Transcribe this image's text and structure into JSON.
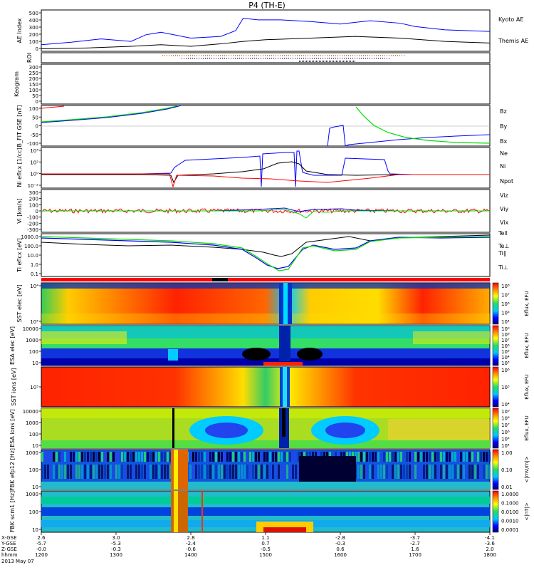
{
  "title": "P4 (TH-E)",
  "colors": {
    "blue": "#0000ff",
    "red": "#ff0000",
    "green": "#00dd00",
    "black": "#000000"
  },
  "chart_data": [
    {
      "type": "line",
      "panel": "ae",
      "ylabel": "AE Index",
      "yticks": [
        "500",
        "400",
        "300",
        "200",
        "100",
        "0"
      ],
      "ylim": [
        0,
        500
      ],
      "series": [
        {
          "name": "Kyoto AE",
          "color": "#0000ff",
          "x": [
            1200,
            1240,
            1280,
            1320,
            1340,
            1360,
            1400,
            1440,
            1460,
            1470,
            1490,
            1520,
            1560,
            1600,
            1640,
            1680,
            1700,
            1740,
            1800
          ],
          "y": [
            80,
            110,
            150,
            120,
            200,
            230,
            160,
            180,
            250,
            400,
            380,
            380,
            360,
            330,
            370,
            340,
            300,
            260,
            240
          ]
        },
        {
          "name": "Themis AE",
          "color": "#000000",
          "x": [
            1200,
            1260,
            1320,
            1360,
            1400,
            1440,
            1470,
            1500,
            1560,
            1620,
            1680,
            1740,
            1800
          ],
          "y": [
            30,
            40,
            60,
            80,
            60,
            90,
            120,
            140,
            160,
            180,
            160,
            120,
            100
          ]
        }
      ]
    },
    {
      "type": "scatter",
      "panel": "roi",
      "ylabel": "ROI"
    },
    {
      "type": "line",
      "panel": "keogram",
      "ylabel": "Keogram",
      "yticks": [
        "300",
        "250",
        "200",
        "150",
        "100",
        "50",
        "0"
      ],
      "ylim": [
        0,
        300
      ]
    },
    {
      "type": "line",
      "panel": "bfield",
      "ylabel": "B_FIT GSE [nT]",
      "yticks": [
        "100",
        "50",
        "0",
        "-50",
        "-100"
      ],
      "ylim": [
        -100,
        100
      ],
      "series": [
        {
          "name": "Bz",
          "color": "#ff0000"
        },
        {
          "name": "By",
          "color": "#00dd00"
        },
        {
          "name": "Bx",
          "color": "#0000ff"
        }
      ]
    },
    {
      "type": "line",
      "panel": "density",
      "ylabel": "Ni eflcx [1/cc]",
      "yticks": [
        "10⁴",
        "10²",
        "10⁰",
        "10⁻²"
      ],
      "series": [
        {
          "name": "Ne",
          "color": "#ff0000"
        },
        {
          "name": "Ni",
          "color": "#000000"
        },
        {
          "name": "Npot",
          "color": "#0000ff"
        }
      ]
    },
    {
      "type": "line",
      "panel": "velocity",
      "ylabel": "Vi [km/s]",
      "yticks": [
        "300",
        "200",
        "100",
        "0",
        "-100",
        "-200",
        "-300"
      ],
      "ylim": [
        -300,
        300
      ],
      "series": [
        {
          "name": "Viz",
          "color": "#ff0000"
        },
        {
          "name": "Viy",
          "color": "#00dd00"
        },
        {
          "name": "Vix",
          "color": "#0000ff"
        }
      ]
    },
    {
      "type": "line",
      "panel": "temperature",
      "ylabel": "Ti eflcx [eV]",
      "yticks": [
        "1000.0",
        "100.0",
        "10.0",
        "1.0",
        "0.1"
      ],
      "series": [
        {
          "name": "Tell",
          "color": "#000000"
        },
        {
          "name": "Te⊥",
          "color": "#ff0000"
        },
        {
          "name": "Ti∥",
          "color": "#00dd00"
        },
        {
          "name": "Ti⊥",
          "color": "#0000ff"
        }
      ]
    },
    {
      "type": "heatmap",
      "panel": "sst_e",
      "ylabel": "SST elec [eV]",
      "yticks": [
        "10⁴",
        "10⁵"
      ],
      "cbar_ticks": [
        "10⁸",
        "10⁷",
        "10⁶",
        "10⁵",
        "10⁴"
      ],
      "cbar_label": "Eflux, EFU"
    },
    {
      "type": "heatmap",
      "panel": "esa_e",
      "ylabel": "ESA elec [eV]",
      "yticks": [
        "10000",
        "1000",
        "100",
        "10"
      ],
      "cbar_ticks": [
        "10⁹",
        "10⁸",
        "10⁷",
        "10⁶",
        "10⁵",
        "10⁴",
        "10³"
      ],
      "cbar_label": "Eflux, EFU"
    },
    {
      "type": "heatmap",
      "panel": "sst_i",
      "ylabel": "SST ions [eV]",
      "yticks": [
        "10⁵"
      ],
      "cbar_ticks": [
        "10⁶",
        "10⁵",
        "10⁴"
      ],
      "cbar_label": "Eflux, EFU"
    },
    {
      "type": "heatmap",
      "panel": "esa_i",
      "ylabel": "ESA ions [eV]",
      "yticks": [
        "10000",
        "1000",
        "100",
        "10"
      ],
      "cbar_ticks": [
        "10⁹",
        "10⁸",
        "10⁷",
        "10⁶",
        "10⁵",
        "10⁴"
      ],
      "cbar_label": "Eflux, EFU"
    },
    {
      "type": "heatmap",
      "panel": "fbk_e",
      "ylabel": "FBK efp12 [Hz]",
      "yticks": [
        "1000",
        "100",
        "10"
      ],
      "cbar_ticks": [
        "1.00",
        "0.10",
        "0.01"
      ],
      "cbar_label": "<|mV/m|>"
    },
    {
      "type": "heatmap",
      "panel": "fbk_b",
      "ylabel": "FBK scm1 [Hz]",
      "yticks": [
        "1000",
        "100",
        "10"
      ],
      "cbar_ticks": [
        "1.0000",
        "0.1000",
        "0.0100",
        "0.0010",
        "0.0001"
      ],
      "cbar_label": "<|nT|>"
    }
  ],
  "xaxis": {
    "row_labels": [
      "X-GSE",
      "Y-GSE",
      "Z-GSE",
      "hhmm",
      "2013 May 07"
    ],
    "ticks": [
      {
        "x": "2.6",
        "y": "-5.7",
        "z": "-0.0",
        "t": "1200"
      },
      {
        "x": "3.0",
        "y": "-5.3",
        "z": "-0.3",
        "t": "1300"
      },
      {
        "x": "2.8",
        "y": "-2.4",
        "z": "-0.6",
        "t": "1400"
      },
      {
        "x": "1.1",
        "y": "0.7",
        "z": "-0.5",
        "t": "1500"
      },
      {
        "x": "-2.8",
        "y": "-0.3",
        "z": "0.6",
        "t": "1600"
      },
      {
        "x": "-3.7",
        "y": "-2.7",
        "z": "1.6",
        "t": "1700"
      },
      {
        "x": "-4.1",
        "y": "-3.6",
        "z": "2.0",
        "t": "1800"
      }
    ]
  }
}
